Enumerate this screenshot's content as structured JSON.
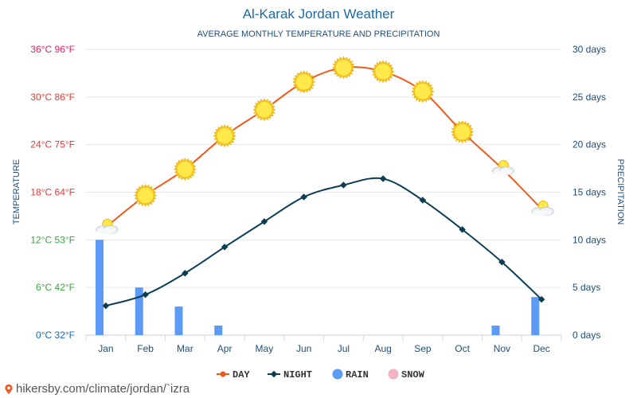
{
  "chart_data": {
    "type": "line",
    "title": "Al-Karak Jordan Weather",
    "subtitle": "AVERAGE MONTHLY TEMPERATURE AND PRECIPITATION",
    "ylabel_left": "TEMPERATURE",
    "ylabel_right": "PRECIPITATION",
    "categories": [
      "Jan",
      "Feb",
      "Mar",
      "Apr",
      "May",
      "Jun",
      "Jul",
      "Aug",
      "Sep",
      "Oct",
      "Nov",
      "Dec"
    ],
    "left_ticks": [
      "0°C 32°F",
      "6°C 42°F",
      "12°C 53°F",
      "18°C 64°F",
      "24°C 75°F",
      "30°C 86°F",
      "36°C 96°F"
    ],
    "right_ticks": [
      "0 days",
      "5 days",
      "10 days",
      "15 days",
      "20 days",
      "25 days",
      "30 days"
    ],
    "ylim_temp": [
      0,
      36
    ],
    "ylim_days": [
      0,
      30
    ],
    "series": [
      {
        "name": "DAY",
        "type": "line",
        "color": "#f05a1a",
        "values": [
          13.6,
          17.6,
          20.9,
          25.1,
          28.4,
          31.9,
          33.7,
          33.2,
          30.7,
          25.6,
          21.0,
          15.9
        ],
        "icons": [
          "cloud-sun",
          "sun",
          "sun",
          "sun",
          "sun",
          "sun",
          "sun",
          "sun",
          "sun",
          "sun",
          "cloud-sun",
          "cloud-sun"
        ]
      },
      {
        "name": "NIGHT",
        "type": "line",
        "color": "#0b3d53",
        "values": [
          3.7,
          5.1,
          7.8,
          11.1,
          14.3,
          17.4,
          18.9,
          19.7,
          17.0,
          13.3,
          9.2,
          4.5
        ]
      },
      {
        "name": "RAIN",
        "type": "bar",
        "color": "#5b9af5",
        "values": [
          10,
          5,
          3,
          1,
          0,
          0,
          0,
          0,
          0,
          0,
          1,
          4
        ]
      },
      {
        "name": "SNOW",
        "type": "bar",
        "color": "#f4b3c2",
        "values": [
          0,
          0,
          0,
          0,
          0,
          0,
          0,
          0,
          0,
          0,
          0,
          0
        ]
      }
    ],
    "grid": true,
    "legend": "bottom-center"
  },
  "footer": "hikersby.com/climate/jordan/`izra",
  "colors": {
    "title": "#1f6aa3",
    "left_tick_colors": [
      "#1565c0",
      "#43a047",
      "#43a047",
      "#e53935",
      "#e53935",
      "#e53935",
      "#e91e63"
    ],
    "right_tick": "#1f4e79",
    "axis_label": "#1f4e79",
    "xtick": "#1f4e79"
  }
}
